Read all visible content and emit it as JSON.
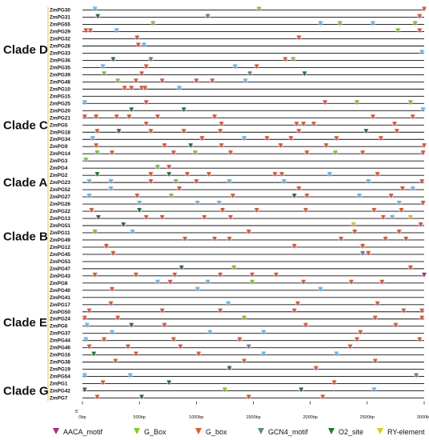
{
  "diagram": {
    "clades": [
      {
        "label": "Clade D",
        "from": "ZmPG30",
        "to": "ZmPG10"
      },
      {
        "label": "Clade C",
        "from": "ZmPG15",
        "to": "ZmPG14"
      },
      {
        "label": "Clade A",
        "from": "ZmPG3",
        "to": "ZmPG26"
      },
      {
        "label": "Clade B",
        "from": "ZmPG22",
        "to": "ZmPG53"
      },
      {
        "label": "Clade E",
        "from": "ZmPG47",
        "to": "ZmPG54"
      },
      {
        "label": "Clade G",
        "from": "ZmPG1",
        "to": "ZmPG7"
      }
    ],
    "genes": [
      "ZmPG30",
      "ZmPG31",
      "ZmPG55",
      "ZmPG29",
      "ZmPG32",
      "ZmPG28",
      "ZmPG33",
      "ZmPG36",
      "ZmPG35",
      "ZmPG39",
      "ZmPG48",
      "ZmPG10",
      "ZmPG15",
      "ZmPG25",
      "ZmPG20",
      "ZmPG21",
      "ZmPG5",
      "ZmPG18",
      "ZmPG34",
      "ZmPG9",
      "ZmPG14",
      "ZmPG3",
      "ZmPG4",
      "ZmPG2",
      "ZmPG23",
      "ZmPG52",
      "ZmPG27",
      "ZmPG26",
      "ZmPG22",
      "ZmPG13",
      "ZmPG51",
      "ZmPG11",
      "ZmPG49",
      "ZmPG12",
      "ZmPG45",
      "ZmPG53",
      "ZmPG47",
      "ZmPG43",
      "ZmPG8",
      "ZmPG40",
      "ZmPG41",
      "ZmPG17",
      "ZmPG50",
      "ZmPG24",
      "ZmPG6",
      "ZmPG37",
      "ZmPG44",
      "ZmPG46",
      "ZmPG16",
      "ZmPG38",
      "ZmPG19",
      "ZmPG54",
      "ZmPG1",
      "ZmPG42",
      "ZmPG7"
    ],
    "axis": {
      "prefix": "5'",
      "unit": "bp",
      "ticks": [
        "0bp",
        "500bp",
        "1000bp",
        "1500bp",
        "2000bp",
        "2500bp",
        "3000bp"
      ],
      "range_bp": [
        0,
        3000
      ]
    },
    "legend": [
      {
        "name": "AACA_motif",
        "color": "#a0307c"
      },
      {
        "name": "G_Box",
        "color": "#7ccf29"
      },
      {
        "name": "G_box",
        "color": "#d8602a"
      },
      {
        "name": "GCN4_motif",
        "color": "#5f8c80"
      },
      {
        "name": "O2_site",
        "color": "#1f7a2c"
      },
      {
        "name": "RY-element",
        "color": "#d6d10f"
      }
    ],
    "extra_marker_color": "#56c8e8",
    "halo_color": "#f2b9ea",
    "motifs": [
      [
        [
          110,
          "g"
        ],
        [
          1550,
          "B"
        ],
        [
          3000,
          "b"
        ]
      ],
      [
        [
          135,
          "O"
        ],
        [
          1100,
          "N"
        ],
        [
          2960,
          "b"
        ]
      ],
      [
        [
          620,
          "B"
        ],
        [
          2090,
          "C"
        ],
        [
          2260,
          "B"
        ],
        [
          2550,
          "C"
        ],
        [
          2920,
          "B"
        ]
      ],
      [
        [
          30,
          "b"
        ],
        [
          70,
          "b"
        ],
        [
          300,
          "C"
        ],
        [
          2770,
          "B"
        ],
        [
          2960,
          "b"
        ]
      ],
      [
        [
          480,
          "b"
        ],
        [
          1900,
          "b"
        ]
      ],
      [
        [
          490,
          "b"
        ],
        [
          540,
          "C"
        ]
      ],
      [
        [
          2980,
          "C"
        ]
      ],
      [
        [
          270,
          "O"
        ],
        [
          600,
          "N"
        ],
        [
          1780,
          "b"
        ],
        [
          1850,
          "B"
        ]
      ],
      [
        [
          180,
          "C"
        ],
        [
          560,
          "b"
        ],
        [
          1340,
          "C"
        ],
        [
          1530,
          "b"
        ]
      ],
      [
        [
          190,
          "B"
        ],
        [
          520,
          "b"
        ],
        [
          1470,
          "N"
        ],
        [
          1950,
          "O"
        ]
      ],
      [
        [
          310,
          "B"
        ],
        [
          470,
          "b"
        ],
        [
          700,
          "b"
        ],
        [
          1000,
          "b"
        ],
        [
          1140,
          "b"
        ],
        [
          1430,
          "C"
        ]
      ],
      [
        [
          370,
          "b"
        ],
        [
          430,
          "b"
        ],
        [
          520,
          "b"
        ],
        [
          550,
          "b"
        ],
        [
          850,
          "C"
        ]
      ],
      [],
      [
        [
          20,
          "C"
        ],
        [
          560,
          "b"
        ],
        [
          2130,
          "b"
        ],
        [
          2410,
          "B"
        ],
        [
          2880,
          "B"
        ]
      ],
      [
        [
          430,
          "O"
        ],
        [
          890,
          "O"
        ],
        [
          2990,
          "C"
        ]
      ],
      [
        [
          20,
          "b"
        ],
        [
          120,
          "b"
        ],
        [
          300,
          "b"
        ],
        [
          410,
          "b"
        ],
        [
          660,
          "b"
        ],
        [
          1160,
          "b"
        ],
        [
          2550,
          "b"
        ],
        [
          2900,
          "b"
        ]
      ],
      [
        [
          560,
          "b"
        ],
        [
          1220,
          "b"
        ],
        [
          1880,
          "b"
        ],
        [
          1940,
          "b"
        ],
        [
          2030,
          "b"
        ],
        [
          2740,
          "b"
        ]
      ],
      [
        [
          130,
          "b"
        ],
        [
          320,
          "O"
        ],
        [
          600,
          "b"
        ],
        [
          890,
          "b"
        ],
        [
          1210,
          "b"
        ],
        [
          1900,
          "b"
        ],
        [
          2490,
          "O"
        ],
        [
          2760,
          "b"
        ]
      ],
      [
        [
          90,
          "C"
        ],
        [
          1050,
          "b"
        ],
        [
          1420,
          "C"
        ],
        [
          1620,
          "b"
        ],
        [
          1830,
          "b"
        ],
        [
          2230,
          "b"
        ],
        [
          2620,
          "b"
        ]
      ],
      [
        [
          120,
          "b"
        ],
        [
          720,
          "b"
        ],
        [
          950,
          "O"
        ],
        [
          1220,
          "b"
        ],
        [
          1740,
          "b"
        ],
        [
          2140,
          "b"
        ],
        [
          3000,
          "b"
        ]
      ],
      [
        [
          130,
          "B"
        ],
        [
          260,
          "b"
        ],
        [
          800,
          "b"
        ],
        [
          990,
          "B"
        ],
        [
          1300,
          "b"
        ],
        [
          1970,
          "b"
        ],
        [
          2220,
          "B"
        ],
        [
          2460,
          "b"
        ],
        [
          2990,
          "b"
        ]
      ],
      [
        [
          30,
          "B"
        ]
      ],
      [
        [
          660,
          "B"
        ],
        [
          760,
          "b"
        ]
      ],
      [
        [
          130,
          "O"
        ],
        [
          600,
          "b"
        ],
        [
          760,
          "O"
        ],
        [
          920,
          "b"
        ],
        [
          1110,
          "b"
        ],
        [
          1690,
          "b"
        ],
        [
          1750,
          "b"
        ],
        [
          2170,
          "C"
        ],
        [
          2590,
          "b"
        ]
      ],
      [
        [
          60,
          "C"
        ],
        [
          250,
          "C"
        ],
        [
          600,
          "b"
        ],
        [
          820,
          "B"
        ],
        [
          1000,
          "b"
        ],
        [
          1290,
          "C"
        ],
        [
          1770,
          "C"
        ],
        [
          2510,
          "C"
        ],
        [
          2980,
          "b"
        ]
      ],
      [
        [
          250,
          "C"
        ],
        [
          850,
          "b"
        ],
        [
          1900,
          "b"
        ],
        [
          2810,
          "b"
        ],
        [
          2900,
          "C"
        ]
      ],
      [
        [
          60,
          "C"
        ],
        [
          480,
          "b"
        ],
        [
          780,
          "B"
        ],
        [
          1320,
          "b"
        ],
        [
          1860,
          "O"
        ],
        [
          1970,
          "b"
        ],
        [
          2430,
          "C"
        ],
        [
          2710,
          "b"
        ]
      ],
      [
        [
          500,
          "C"
        ],
        [
          1010,
          "C"
        ],
        [
          1200,
          "C"
        ],
        [
          2780,
          "C"
        ],
        [
          2990,
          "b"
        ]
      ],
      [
        [
          80,
          "b"
        ],
        [
          500,
          "O"
        ],
        [
          1230,
          "b"
        ],
        [
          1530,
          "b"
        ],
        [
          1960,
          "b"
        ],
        [
          2560,
          "b"
        ],
        [
          2800,
          "b"
        ]
      ],
      [
        [
          140,
          "O"
        ],
        [
          560,
          "b"
        ],
        [
          700,
          "b"
        ],
        [
          1070,
          "b"
        ],
        [
          1300,
          "b"
        ],
        [
          2640,
          "b"
        ],
        [
          2720,
          "C"
        ],
        [
          2880,
          "Y"
        ]
      ],
      [
        [
          360,
          "O"
        ],
        [
          2380,
          "Y"
        ],
        [
          2970,
          "b"
        ]
      ],
      [
        [
          110,
          "B"
        ],
        [
          440,
          "C"
        ],
        [
          1460,
          "b"
        ],
        [
          2390,
          "b"
        ],
        [
          2780,
          "b"
        ]
      ],
      [
        [
          900,
          "b"
        ],
        [
          1160,
          "b"
        ],
        [
          1290,
          "b"
        ],
        [
          2270,
          "b"
        ],
        [
          2660,
          "b"
        ],
        [
          2840,
          "b"
        ]
      ],
      [
        [
          210,
          "b"
        ],
        [
          1860,
          "b"
        ],
        [
          2460,
          "b"
        ]
      ],
      [
        [
          270,
          "b"
        ],
        [
          2460,
          "N"
        ],
        [
          2510,
          "b"
        ]
      ],
      [],
      [
        [
          870,
          "O"
        ],
        [
          1330,
          "B"
        ],
        [
          2880,
          "b"
        ]
      ],
      [
        [
          110,
          "b"
        ],
        [
          470,
          "b"
        ],
        [
          810,
          "b"
        ],
        [
          1210,
          "b"
        ],
        [
          1490,
          "b"
        ],
        [
          1700,
          "b"
        ],
        [
          3000,
          "A"
        ]
      ],
      [
        [
          660,
          "C"
        ],
        [
          770,
          "b"
        ],
        [
          1100,
          "C"
        ],
        [
          1490,
          "B"
        ],
        [
          1940,
          "b"
        ],
        [
          2360,
          "b"
        ],
        [
          2630,
          "b"
        ]
      ],
      [
        [
          260,
          "b"
        ],
        [
          1010,
          "C"
        ],
        [
          2090,
          "C"
        ]
      ],
      [],
      [
        [
          250,
          "b"
        ],
        [
          1280,
          "C"
        ],
        [
          1890,
          "b"
        ],
        [
          2590,
          "b"
        ]
      ],
      [
        [
          60,
          "b"
        ],
        [
          700,
          "b"
        ],
        [
          1210,
          "b"
        ],
        [
          1860,
          "b"
        ],
        [
          2820,
          "b"
        ],
        [
          2980,
          "b"
        ]
      ],
      [
        [
          20,
          "b"
        ],
        [
          310,
          "b"
        ],
        [
          1420,
          "B"
        ],
        [
          2570,
          "b"
        ],
        [
          2980,
          "b"
        ]
      ],
      [
        [
          40,
          "C"
        ],
        [
          430,
          "O"
        ],
        [
          720,
          "b"
        ],
        [
          1960,
          "b"
        ],
        [
          2750,
          "b"
        ]
      ],
      [
        [
          260,
          "C"
        ],
        [
          1120,
          "C"
        ],
        [
          1590,
          "C"
        ],
        [
          2440,
          "b"
        ]
      ],
      [
        [
          30,
          "C"
        ],
        [
          190,
          "b"
        ],
        [
          800,
          "b"
        ],
        [
          1380,
          "b"
        ],
        [
          2410,
          "b"
        ],
        [
          2960,
          "b"
        ]
      ],
      [
        [
          60,
          "b"
        ],
        [
          400,
          "b"
        ],
        [
          860,
          "b"
        ],
        [
          1460,
          "N"
        ],
        [
          2350,
          "b"
        ]
      ],
      [
        [
          100,
          "O"
        ],
        [
          470,
          "b"
        ],
        [
          1020,
          "b"
        ],
        [
          1590,
          "C"
        ],
        [
          2230,
          "C"
        ]
      ],
      [
        [
          290,
          "b"
        ],
        [
          1420,
          "b"
        ],
        [
          2570,
          "b"
        ]
      ],
      [
        [
          1290,
          "O"
        ],
        [
          2050,
          "b"
        ]
      ],
      [
        [
          20,
          "C"
        ],
        [
          420,
          "C"
        ],
        [
          2930,
          "N"
        ]
      ],
      [
        [
          180,
          "b"
        ],
        [
          760,
          "O"
        ],
        [
          2210,
          "b"
        ]
      ],
      [
        [
          20,
          "O"
        ],
        [
          1250,
          "B"
        ],
        [
          1920,
          "O"
        ],
        [
          2560,
          "C"
        ]
      ],
      [
        [
          130,
          "b"
        ],
        [
          520,
          "O"
        ],
        [
          1460,
          "b"
        ],
        [
          2110,
          "b"
        ]
      ]
    ]
  }
}
